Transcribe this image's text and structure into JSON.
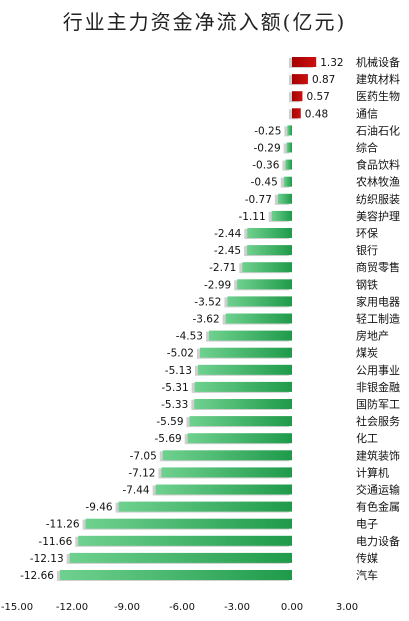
{
  "chart_data": {
    "type": "bar",
    "orientation": "horizontal",
    "title": "行业主力资金净流入额(亿元)",
    "xlim": [
      -15,
      3
    ],
    "x_ticks": [
      "-15.00",
      "-12.00",
      "-9.00",
      "-6.00",
      "-3.00",
      "0.00",
      "3.00"
    ],
    "x_tick_values": [
      -15,
      -12,
      -9,
      -6,
      -3,
      0,
      3
    ],
    "categories": [
      "机械设备",
      "建筑材料",
      "医药生物",
      "通信",
      "石油石化",
      "综合",
      "食品饮料",
      "农林牧渔",
      "纺织服装",
      "美容护理",
      "环保",
      "银行",
      "商贸零售",
      "钢铁",
      "家用电器",
      "轻工制造",
      "房地产",
      "煤炭",
      "公用事业",
      "非银金融",
      "国防军工",
      "社会服务",
      "化工",
      "建筑装饰",
      "计算机",
      "交通运输",
      "有色金属",
      "电子",
      "电力设备",
      "传媒",
      "汽车"
    ],
    "values": [
      1.32,
      0.87,
      0.57,
      0.48,
      -0.25,
      -0.29,
      -0.36,
      -0.45,
      -0.77,
      -1.11,
      -2.44,
      -2.45,
      -2.71,
      -2.99,
      -3.52,
      -3.62,
      -4.53,
      -5.02,
      -5.13,
      -5.31,
      -5.33,
      -5.59,
      -5.69,
      -7.05,
      -7.12,
      -7.44,
      -9.46,
      -11.26,
      -11.66,
      -12.13,
      -12.66
    ],
    "value_labels": [
      "1.32",
      "0.87",
      "0.57",
      "0.48",
      "-0.25",
      "-0.29",
      "-0.36",
      "-0.45",
      "-0.77",
      "-1.11",
      "-2.44",
      "-2.45",
      "-2.71",
      "-2.99",
      "-3.52",
      "-3.62",
      "-4.53",
      "-5.02",
      "-5.13",
      "-5.31",
      "-5.33",
      "-5.59",
      "-5.69",
      "-7.05",
      "-7.12",
      "-7.44",
      "-9.46",
      "-11.26",
      "-11.66",
      "-12.13",
      "-12.66"
    ],
    "grid": false,
    "legend": "none",
    "colors": {
      "positive": "#cc1111",
      "negative": "#1f9a4a",
      "negative_light": "#6fd18f",
      "shadow": "#cfcfcf"
    }
  }
}
